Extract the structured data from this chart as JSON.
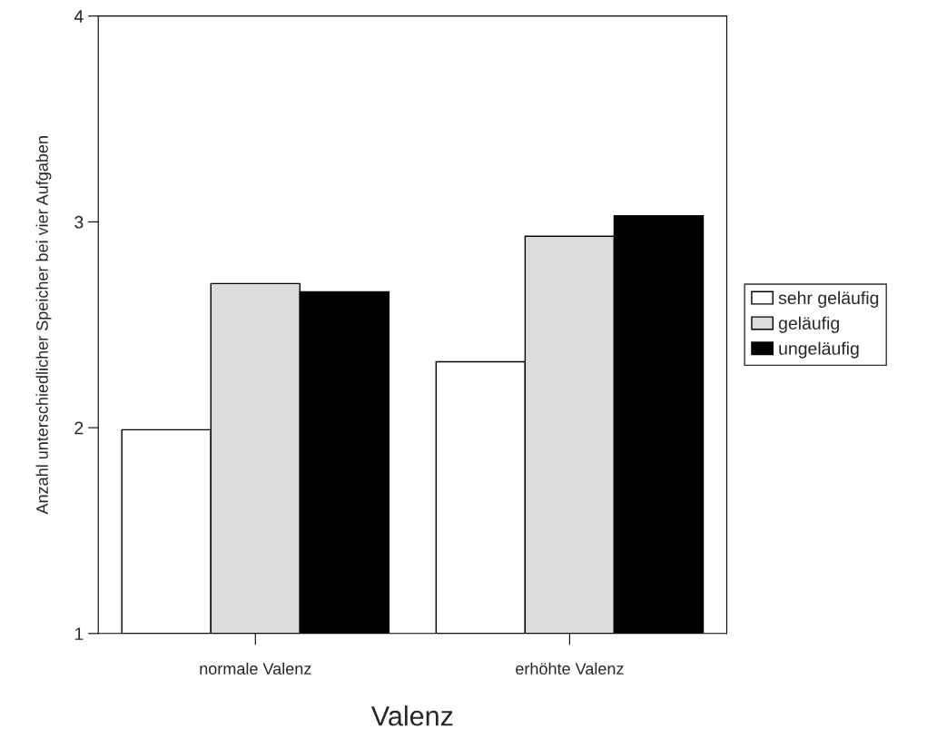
{
  "chart_data": {
    "type": "bar",
    "xlabel": "Valenz",
    "ylabel": "Anzahl unterschiedlicher Speicher bei vier Aufgaben",
    "categories": [
      "normale Valenz",
      "erhöhte Valenz"
    ],
    "series": [
      {
        "name": "sehr geläufig",
        "color": "#ffffff",
        "values": [
          1.99,
          2.32
        ]
      },
      {
        "name": "geläufig",
        "color": "#dcdcdc",
        "values": [
          2.7,
          2.93
        ]
      },
      {
        "name": "ungeläufig",
        "color": "#000000",
        "values": [
          2.66,
          3.03
        ]
      }
    ],
    "ylim": [
      1,
      4
    ],
    "yticks": [
      1,
      2,
      3,
      4
    ],
    "grid": false,
    "legend": "right"
  }
}
